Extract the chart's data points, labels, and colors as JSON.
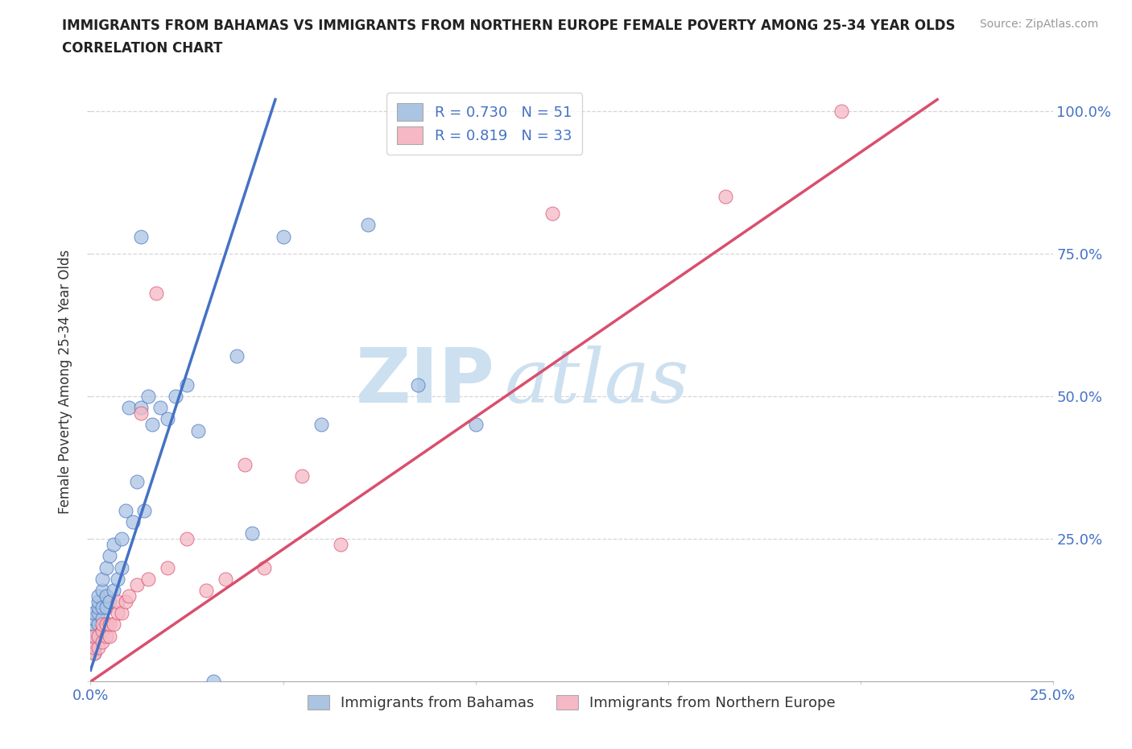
{
  "title_line1": "IMMIGRANTS FROM BAHAMAS VS IMMIGRANTS FROM NORTHERN EUROPE FEMALE POVERTY AMONG 25-34 YEAR OLDS",
  "title_line2": "CORRELATION CHART",
  "source_text": "Source: ZipAtlas.com",
  "ylabel": "Female Poverty Among 25-34 Year Olds",
  "xlim": [
    0.0,
    0.25
  ],
  "ylim": [
    0.0,
    1.05
  ],
  "xticks": [
    0.0,
    0.05,
    0.1,
    0.15,
    0.2,
    0.25
  ],
  "yticks": [
    0.0,
    0.25,
    0.5,
    0.75,
    1.0
  ],
  "legend_r1": "R = 0.730",
  "legend_n1": "N = 51",
  "legend_r2": "R = 0.819",
  "legend_n2": "N = 33",
  "color_blue": "#aac4e2",
  "color_pink": "#f5b8c4",
  "line_blue": "#4472c4",
  "line_pink": "#d94f6e",
  "watermark_zip": "ZIP",
  "watermark_atlas": "atlas",
  "watermark_color": "#cce0f0",
  "blue_scatter_x": [
    0.001,
    0.001,
    0.001,
    0.001,
    0.001,
    0.001,
    0.001,
    0.002,
    0.002,
    0.002,
    0.002,
    0.002,
    0.002,
    0.003,
    0.003,
    0.003,
    0.003,
    0.003,
    0.004,
    0.004,
    0.004,
    0.004,
    0.005,
    0.005,
    0.006,
    0.006,
    0.007,
    0.008,
    0.008,
    0.009,
    0.01,
    0.011,
    0.012,
    0.013,
    0.014,
    0.015,
    0.016,
    0.018,
    0.02,
    0.022,
    0.025,
    0.028,
    0.032,
    0.038,
    0.042,
    0.05,
    0.06,
    0.072,
    0.085,
    0.1,
    0.013
  ],
  "blue_scatter_y": [
    0.05,
    0.07,
    0.08,
    0.09,
    0.1,
    0.11,
    0.12,
    0.08,
    0.1,
    0.12,
    0.13,
    0.14,
    0.15,
    0.09,
    0.11,
    0.13,
    0.16,
    0.18,
    0.1,
    0.13,
    0.15,
    0.2,
    0.14,
    0.22,
    0.16,
    0.24,
    0.18,
    0.2,
    0.25,
    0.3,
    0.48,
    0.28,
    0.35,
    0.48,
    0.3,
    0.5,
    0.45,
    0.48,
    0.46,
    0.5,
    0.52,
    0.44,
    0.0,
    0.57,
    0.26,
    0.78,
    0.45,
    0.8,
    0.52,
    0.45,
    0.78
  ],
  "pink_scatter_x": [
    0.001,
    0.001,
    0.001,
    0.002,
    0.002,
    0.003,
    0.003,
    0.003,
    0.004,
    0.004,
    0.005,
    0.005,
    0.006,
    0.007,
    0.007,
    0.008,
    0.009,
    0.01,
    0.012,
    0.013,
    0.015,
    0.017,
    0.02,
    0.025,
    0.03,
    0.035,
    0.04,
    0.045,
    0.055,
    0.065,
    0.12,
    0.165,
    0.195
  ],
  "pink_scatter_y": [
    0.05,
    0.06,
    0.08,
    0.06,
    0.08,
    0.07,
    0.09,
    0.1,
    0.08,
    0.1,
    0.08,
    0.1,
    0.1,
    0.12,
    0.14,
    0.12,
    0.14,
    0.15,
    0.17,
    0.47,
    0.18,
    0.68,
    0.2,
    0.25,
    0.16,
    0.18,
    0.38,
    0.2,
    0.36,
    0.24,
    0.82,
    0.85,
    1.0
  ],
  "blue_line_x": [
    0.0,
    0.048
  ],
  "blue_line_y": [
    0.02,
    1.02
  ],
  "pink_line_x": [
    0.0,
    0.22
  ],
  "pink_line_y": [
    0.0,
    1.02
  ]
}
